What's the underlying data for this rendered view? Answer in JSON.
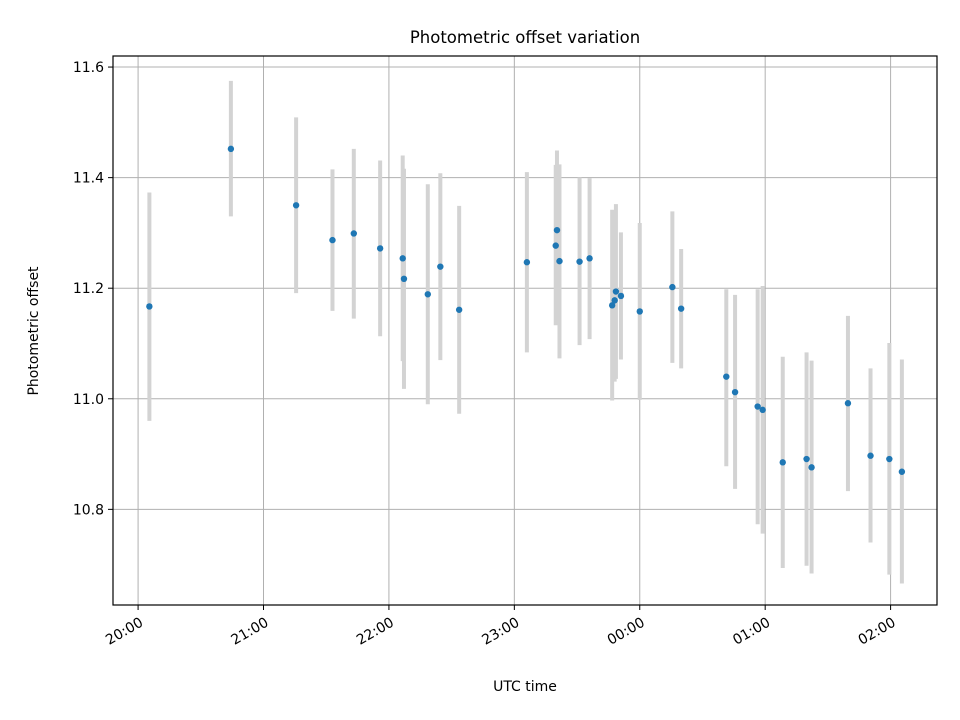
{
  "chart_data": {
    "type": "scatter",
    "title": "Photometric offset variation",
    "xlabel": "UTC time",
    "ylabel": "Photometric offset",
    "x_unit": "hours (UTC, continuing past midnight)",
    "xlim": [
      19.8,
      26.37
    ],
    "ylim": [
      10.627,
      11.62
    ],
    "x_ticks": [
      20,
      21,
      22,
      23,
      24,
      25,
      26
    ],
    "x_tick_labels": [
      "20:00",
      "21:00",
      "22:00",
      "23:00",
      "00:00",
      "01:00",
      "02:00"
    ],
    "y_ticks": [
      10.8,
      11.0,
      11.2,
      11.4,
      11.6
    ],
    "y_tick_labels": [
      "10.8",
      "11.0",
      "11.2",
      "11.4",
      "11.6"
    ],
    "grid": true,
    "colors": {
      "points": "#1f77b4",
      "error_bars": "#d3d3d3",
      "grid": "#b0b0b0"
    },
    "points": [
      {
        "x": 20.09,
        "y": 11.167,
        "ylo": 10.96,
        "yhi": 11.373
      },
      {
        "x": 20.74,
        "y": 11.452,
        "ylo": 11.33,
        "yhi": 11.575
      },
      {
        "x": 21.26,
        "y": 11.35,
        "ylo": 11.191,
        "yhi": 11.509
      },
      {
        "x": 21.55,
        "y": 11.287,
        "ylo": 11.159,
        "yhi": 11.415
      },
      {
        "x": 21.72,
        "y": 11.299,
        "ylo": 11.145,
        "yhi": 11.452
      },
      {
        "x": 21.93,
        "y": 11.272,
        "ylo": 11.113,
        "yhi": 11.431
      },
      {
        "x": 22.11,
        "y": 11.254,
        "ylo": 11.068,
        "yhi": 11.44
      },
      {
        "x": 22.12,
        "y": 11.217,
        "ylo": 11.018,
        "yhi": 11.416
      },
      {
        "x": 22.31,
        "y": 11.189,
        "ylo": 10.99,
        "yhi": 11.388
      },
      {
        "x": 22.41,
        "y": 11.239,
        "ylo": 11.07,
        "yhi": 11.408
      },
      {
        "x": 22.56,
        "y": 11.161,
        "ylo": 10.973,
        "yhi": 11.349
      },
      {
        "x": 23.1,
        "y": 11.247,
        "ylo": 11.084,
        "yhi": 11.41
      },
      {
        "x": 23.33,
        "y": 11.277,
        "ylo": 11.133,
        "yhi": 11.423
      },
      {
        "x": 23.34,
        "y": 11.305,
        "ylo": 11.161,
        "yhi": 11.449
      },
      {
        "x": 23.36,
        "y": 11.249,
        "ylo": 11.073,
        "yhi": 11.424
      },
      {
        "x": 23.52,
        "y": 11.248,
        "ylo": 11.097,
        "yhi": 11.4
      },
      {
        "x": 23.6,
        "y": 11.254,
        "ylo": 11.108,
        "yhi": 11.399
      },
      {
        "x": 23.78,
        "y": 11.169,
        "ylo": 10.997,
        "yhi": 11.342
      },
      {
        "x": 23.8,
        "y": 11.178,
        "ylo": 11.031,
        "yhi": 11.326
      },
      {
        "x": 23.81,
        "y": 11.194,
        "ylo": 11.036,
        "yhi": 11.352
      },
      {
        "x": 23.85,
        "y": 11.186,
        "ylo": 11.071,
        "yhi": 11.301
      },
      {
        "x": 24.0,
        "y": 11.158,
        "ylo": 10.998,
        "yhi": 11.318
      },
      {
        "x": 24.26,
        "y": 11.202,
        "ylo": 11.065,
        "yhi": 11.339
      },
      {
        "x": 24.33,
        "y": 11.163,
        "ylo": 11.055,
        "yhi": 11.271
      },
      {
        "x": 24.69,
        "y": 11.04,
        "ylo": 10.878,
        "yhi": 11.198
      },
      {
        "x": 24.76,
        "y": 11.012,
        "ylo": 10.837,
        "yhi": 11.188
      },
      {
        "x": 24.94,
        "y": 10.986,
        "ylo": 10.773,
        "yhi": 11.198
      },
      {
        "x": 24.98,
        "y": 10.98,
        "ylo": 10.756,
        "yhi": 11.204
      },
      {
        "x": 25.14,
        "y": 10.885,
        "ylo": 10.694,
        "yhi": 11.076
      },
      {
        "x": 25.33,
        "y": 10.891,
        "ylo": 10.698,
        "yhi": 11.084
      },
      {
        "x": 25.37,
        "y": 10.876,
        "ylo": 10.684,
        "yhi": 11.069
      },
      {
        "x": 25.66,
        "y": 10.992,
        "ylo": 10.833,
        "yhi": 11.15
      },
      {
        "x": 25.84,
        "y": 10.897,
        "ylo": 10.74,
        "yhi": 11.055
      },
      {
        "x": 25.99,
        "y": 10.891,
        "ylo": 10.682,
        "yhi": 11.101
      },
      {
        "x": 26.09,
        "y": 10.868,
        "ylo": 10.666,
        "yhi": 11.071
      }
    ]
  }
}
